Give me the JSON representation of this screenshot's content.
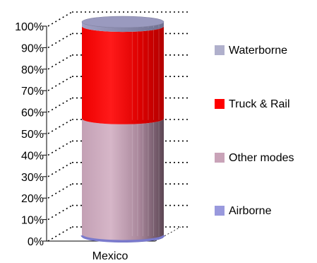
{
  "chart_data": {
    "type": "bar",
    "style": "3d-cylinder-stacked-100",
    "categories": [
      "Mexico"
    ],
    "series": [
      {
        "name": "Airborne",
        "values": [
          1
        ],
        "color": "#9999dd"
      },
      {
        "name": "Other modes",
        "values": [
          54
        ],
        "color": "#c9a3b8"
      },
      {
        "name": "Truck & Rail",
        "values": [
          43
        ],
        "color": "#ff0000"
      },
      {
        "name": "Waterborne",
        "values": [
          2
        ],
        "color": "#b0b0cc"
      }
    ],
    "y_ticks": [
      "0%",
      "10%",
      "20%",
      "30%",
      "40%",
      "50%",
      "60%",
      "70%",
      "80%",
      "90%",
      "100%"
    ],
    "ylim": [
      0,
      100
    ],
    "grid": "dotted-horizontal",
    "legend": {
      "placement": "right",
      "order": [
        "Waterborne",
        "Truck & Rail",
        "Other modes",
        "Airborne"
      ]
    },
    "title": "",
    "xlabel": "",
    "ylabel": ""
  }
}
